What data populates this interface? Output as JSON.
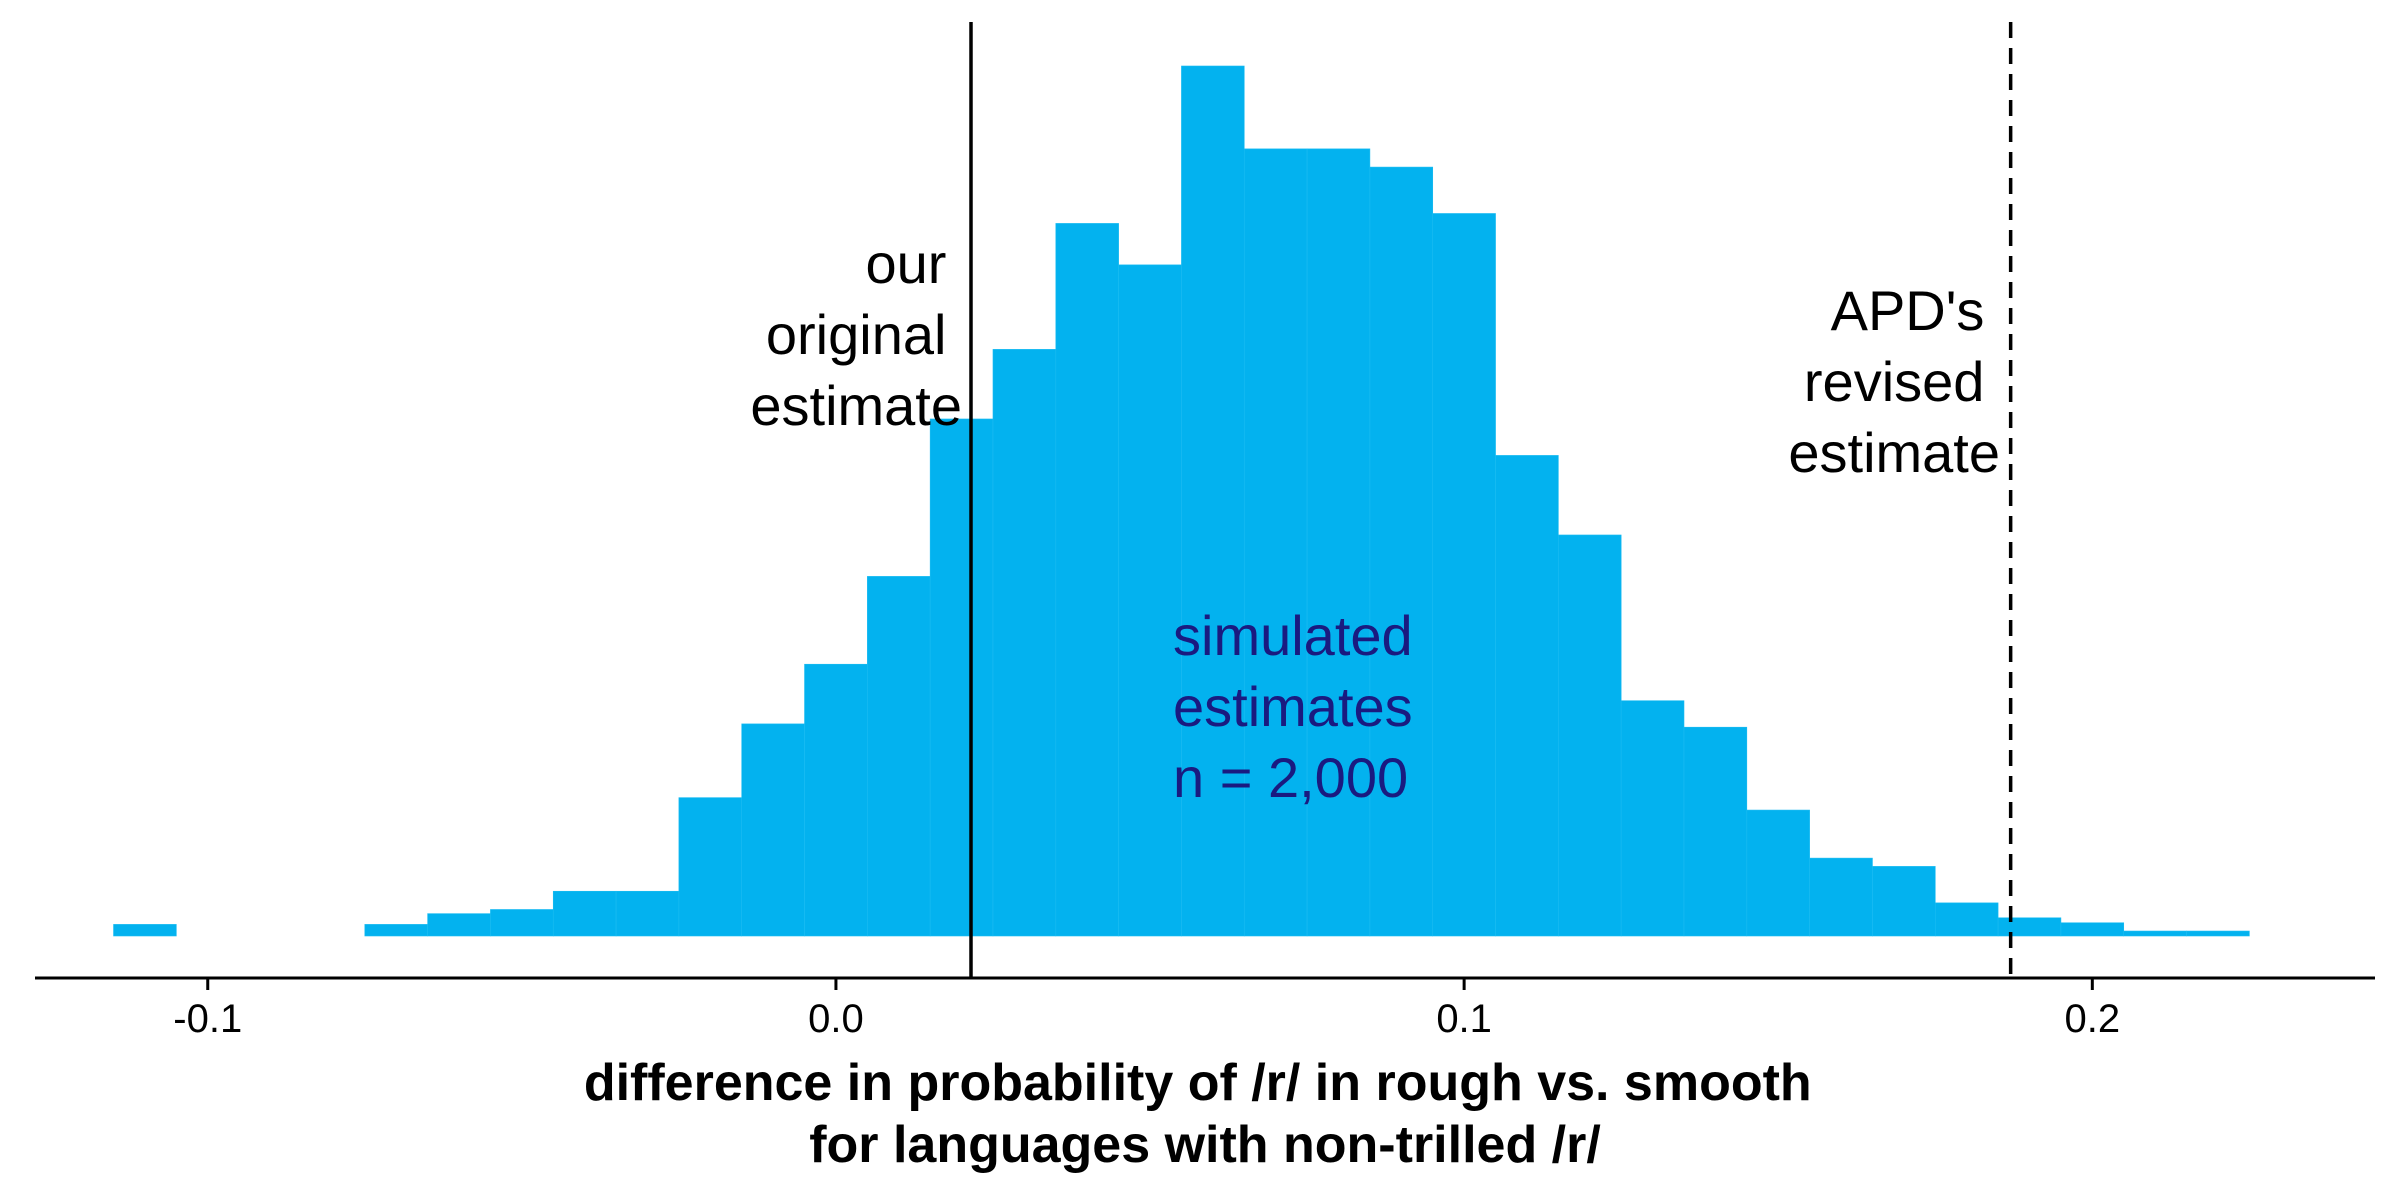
{
  "chart_data": {
    "type": "bar",
    "title": "",
    "xlabel": [
      "difference in probability of /r/ in rough vs. smooth",
      "for languages with non-trilled /r/"
    ],
    "ylabel": "",
    "xlim": [
      -0.1275,
      0.245
    ],
    "ylim": [
      0,
      0.105
    ],
    "bin_width": 0.01,
    "xticks": [
      -0.1,
      0.0,
      0.1,
      0.2
    ],
    "xtick_labels": [
      "-0.1",
      "0.0",
      "0.1",
      "0.2"
    ],
    "grid": false,
    "bar_color": "#03b2ef",
    "bins": [
      {
        "x0": -0.115,
        "x1": -0.105,
        "count": 0.0014
      },
      {
        "x0": -0.075,
        "x1": -0.065,
        "count": 0.0014
      },
      {
        "x0": -0.065,
        "x1": -0.055,
        "count": 0.0027
      },
      {
        "x0": -0.055,
        "x1": -0.045,
        "count": 0.0032
      },
      {
        "x0": -0.045,
        "x1": -0.035,
        "count": 0.0054
      },
      {
        "x0": -0.035,
        "x1": -0.025,
        "count": 0.0054
      },
      {
        "x0": -0.025,
        "x1": -0.015,
        "count": 0.0167
      },
      {
        "x0": -0.015,
        "x1": -0.005,
        "count": 0.0256
      },
      {
        "x0": -0.005,
        "x1": 0.005,
        "count": 0.0328
      },
      {
        "x0": 0.005,
        "x1": 0.015,
        "count": 0.0434
      },
      {
        "x0": 0.015,
        "x1": 0.025,
        "count": 0.0624
      },
      {
        "x0": 0.025,
        "x1": 0.035,
        "count": 0.0708
      },
      {
        "x0": 0.035,
        "x1": 0.045,
        "count": 0.086
      },
      {
        "x0": 0.045,
        "x1": 0.055,
        "count": 0.081
      },
      {
        "x0": 0.055,
        "x1": 0.065,
        "count": 0.105
      },
      {
        "x0": 0.065,
        "x1": 0.075,
        "count": 0.095
      },
      {
        "x0": 0.075,
        "x1": 0.085,
        "count": 0.095
      },
      {
        "x0": 0.085,
        "x1": 0.095,
        "count": 0.0928
      },
      {
        "x0": 0.095,
        "x1": 0.105,
        "count": 0.0872
      },
      {
        "x0": 0.105,
        "x1": 0.115,
        "count": 0.058
      },
      {
        "x0": 0.115,
        "x1": 0.125,
        "count": 0.0484
      },
      {
        "x0": 0.125,
        "x1": 0.135,
        "count": 0.0284
      },
      {
        "x0": 0.135,
        "x1": 0.145,
        "count": 0.0252
      },
      {
        "x0": 0.145,
        "x1": 0.155,
        "count": 0.0152
      },
      {
        "x0": 0.155,
        "x1": 0.165,
        "count": 0.0094
      },
      {
        "x0": 0.165,
        "x1": 0.175,
        "count": 0.0084
      },
      {
        "x0": 0.175,
        "x1": 0.185,
        "count": 0.004
      },
      {
        "x0": 0.185,
        "x1": 0.195,
        "count": 0.0022
      },
      {
        "x0": 0.195,
        "x1": 0.205,
        "count": 0.0016
      },
      {
        "x0": 0.205,
        "x1": 0.215,
        "count": 0.0006
      },
      {
        "x0": 0.215,
        "x1": 0.225,
        "count": 0.0006
      }
    ],
    "reference_lines": [
      {
        "x": 0.0215,
        "style": "solid",
        "label": [
          "our",
          "original",
          "estimate"
        ]
      },
      {
        "x": 0.187,
        "style": "dashed",
        "label": [
          "APD's",
          "revised",
          "estimate"
        ]
      }
    ],
    "annotation": {
      "text": [
        "simulated",
        "estimates",
        "n = 2,000"
      ],
      "color": "#1a1a80"
    }
  }
}
